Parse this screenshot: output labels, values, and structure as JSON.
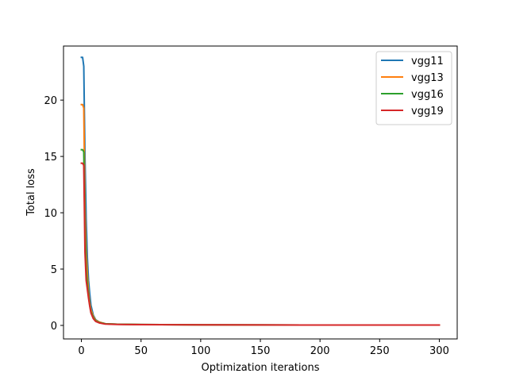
{
  "chart_data": {
    "type": "line",
    "title": "",
    "xlabel": "Optimization iterations",
    "ylabel": "Total loss",
    "xlim": [
      -15,
      315
    ],
    "ylim": [
      -1.2,
      24.8
    ],
    "xticks": [
      0,
      50,
      100,
      150,
      200,
      250,
      300
    ],
    "yticks": [
      0,
      5,
      10,
      15,
      20
    ],
    "grid": false,
    "legend_position": "top-right",
    "series": [
      {
        "name": "vgg11",
        "color": "#1f77b4",
        "x": [
          0,
          1,
          2,
          3,
          4,
          5,
          6,
          7,
          8,
          10,
          12,
          15,
          20,
          30,
          50,
          100,
          150,
          200,
          250,
          300
        ],
        "y": [
          23.8,
          23.8,
          23.0,
          15.0,
          9.5,
          6.0,
          4.0,
          2.8,
          1.8,
          0.9,
          0.5,
          0.3,
          0.15,
          0.1,
          0.08,
          0.05,
          0.04,
          0.03,
          0.03,
          0.03
        ]
      },
      {
        "name": "vgg13",
        "color": "#ff7f0e",
        "x": [
          0,
          1,
          2,
          3,
          4,
          5,
          6,
          7,
          8,
          10,
          12,
          15,
          20,
          30,
          50,
          100,
          150,
          200,
          250,
          300
        ],
        "y": [
          19.6,
          19.6,
          19.3,
          10.5,
          6.5,
          4.5,
          3.0,
          2.0,
          1.4,
          0.8,
          0.45,
          0.3,
          0.15,
          0.1,
          0.08,
          0.05,
          0.04,
          0.03,
          0.03,
          0.03
        ]
      },
      {
        "name": "vgg16",
        "color": "#2ca02c",
        "x": [
          0,
          1,
          2,
          3,
          4,
          5,
          6,
          7,
          8,
          10,
          12,
          15,
          20,
          30,
          50,
          100,
          150,
          200,
          250,
          300
        ],
        "y": [
          15.6,
          15.6,
          15.4,
          8.5,
          5.0,
          3.6,
          2.6,
          1.8,
          1.2,
          0.7,
          0.4,
          0.25,
          0.15,
          0.1,
          0.08,
          0.05,
          0.04,
          0.03,
          0.03,
          0.03
        ]
      },
      {
        "name": "vgg19",
        "color": "#d62728",
        "x": [
          0,
          1,
          2,
          3,
          4,
          5,
          6,
          7,
          8,
          10,
          12,
          15,
          20,
          30,
          50,
          100,
          150,
          200,
          250,
          300
        ],
        "y": [
          14.4,
          14.4,
          14.2,
          6.5,
          4.0,
          3.2,
          2.4,
          1.7,
          1.1,
          0.6,
          0.35,
          0.22,
          0.12,
          0.09,
          0.07,
          0.05,
          0.04,
          0.03,
          0.03,
          0.03
        ]
      }
    ]
  }
}
